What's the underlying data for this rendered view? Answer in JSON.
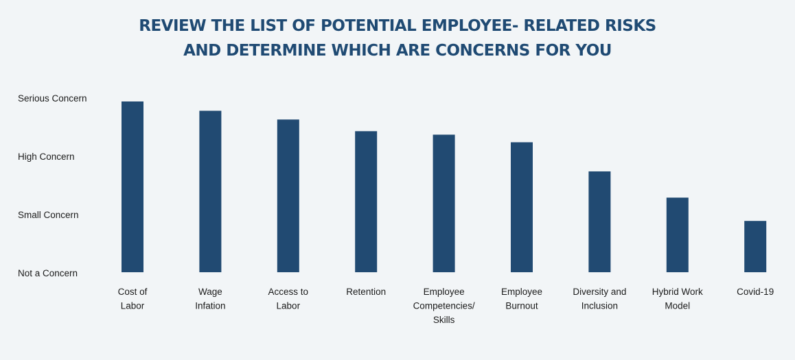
{
  "chart_data": {
    "type": "bar",
    "title_lines": [
      "REVIEW THE LIST OF POTENTIAL EMPLOYEE- RELATED RISKS",
      "AND DETERMINE WHICH ARE CONCERNS FOR YOU"
    ],
    "y_tick_labels": [
      "Not a Concern",
      "Small Concern",
      "High Concern",
      "Serious Concern"
    ],
    "ylim": [
      0,
      3
    ],
    "grid": false,
    "categories": [
      "Cost of Labor",
      "Wage Infation",
      "Access to Labor",
      "Retention",
      "Employee Competencies/ Skills",
      "Employee Burnout",
      "Diversity and Inclusion",
      "Hybrid Work Model",
      "Covid-19"
    ],
    "category_label_lines": [
      [
        "Cost of",
        "Labor"
      ],
      [
        "Wage",
        "Infation"
      ],
      [
        "Access to",
        "Labor"
      ],
      [
        "Retention"
      ],
      [
        "Employee",
        "Competencies/",
        "Skills"
      ],
      [
        "Employee",
        "Burnout"
      ],
      [
        "Diversity and",
        "Inclusion"
      ],
      [
        "Hybrid Work",
        "Model"
      ],
      [
        "Covid-19"
      ]
    ],
    "values": [
      2.93,
      2.77,
      2.62,
      2.42,
      2.36,
      2.23,
      1.73,
      1.28,
      0.88
    ],
    "bar_color": "#214a72"
  }
}
